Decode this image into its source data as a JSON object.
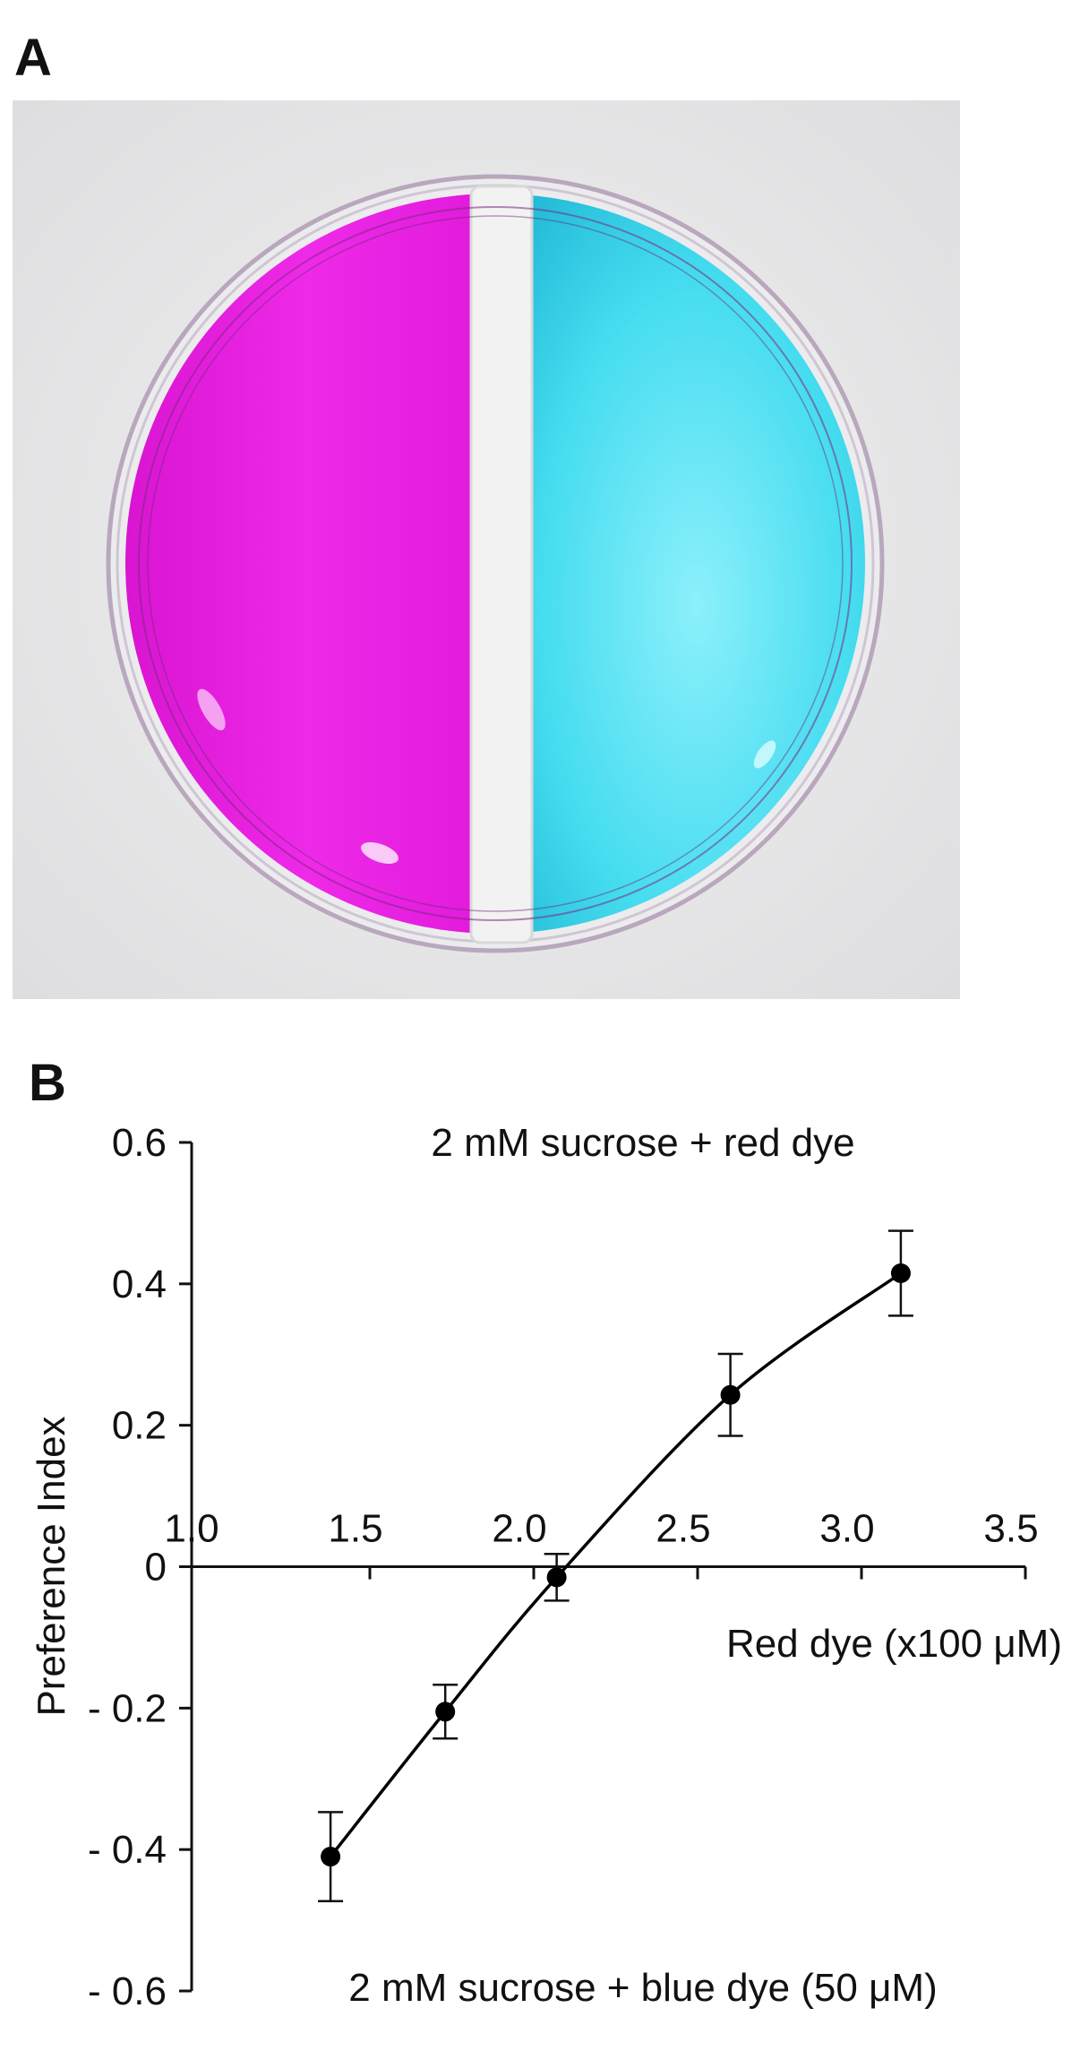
{
  "panels": {
    "a_label": "A",
    "b_label": "B"
  },
  "photo": {
    "left_color": "#ea1ee3",
    "right_color": "#35d9ee",
    "divider_color": "#f2f2f2",
    "background_color": "#e9e9ea"
  },
  "chart_data": {
    "type": "line",
    "xlabel": "Red dye (x100 μM)",
    "ylabel": "Preference Index",
    "xlim": [
      1.0,
      3.5
    ],
    "ylim": [
      -0.6,
      0.6
    ],
    "x_ticks": [
      "1.0",
      "1.5",
      "2.0",
      "2.5",
      "3.0",
      "3.5"
    ],
    "y_ticks": [
      "0.6",
      "0.4",
      "0.2",
      "0",
      "- 0.2",
      "- 0.4",
      "- 0.6"
    ],
    "annotation_top": "2 mM sucrose + red dye",
    "annotation_bottom": "2 mM sucrose + blue dye (50 μM)",
    "series": [
      {
        "x": [
          1.38,
          1.73,
          2.07,
          2.6,
          3.12
        ],
        "y": [
          -0.41,
          -0.205,
          -0.015,
          0.243,
          0.415
        ],
        "err": [
          0.063,
          0.038,
          0.033,
          0.058,
          0.06
        ]
      }
    ],
    "grid": false,
    "legend": "none",
    "line_color": "#000000",
    "marker_color": "#000000"
  }
}
